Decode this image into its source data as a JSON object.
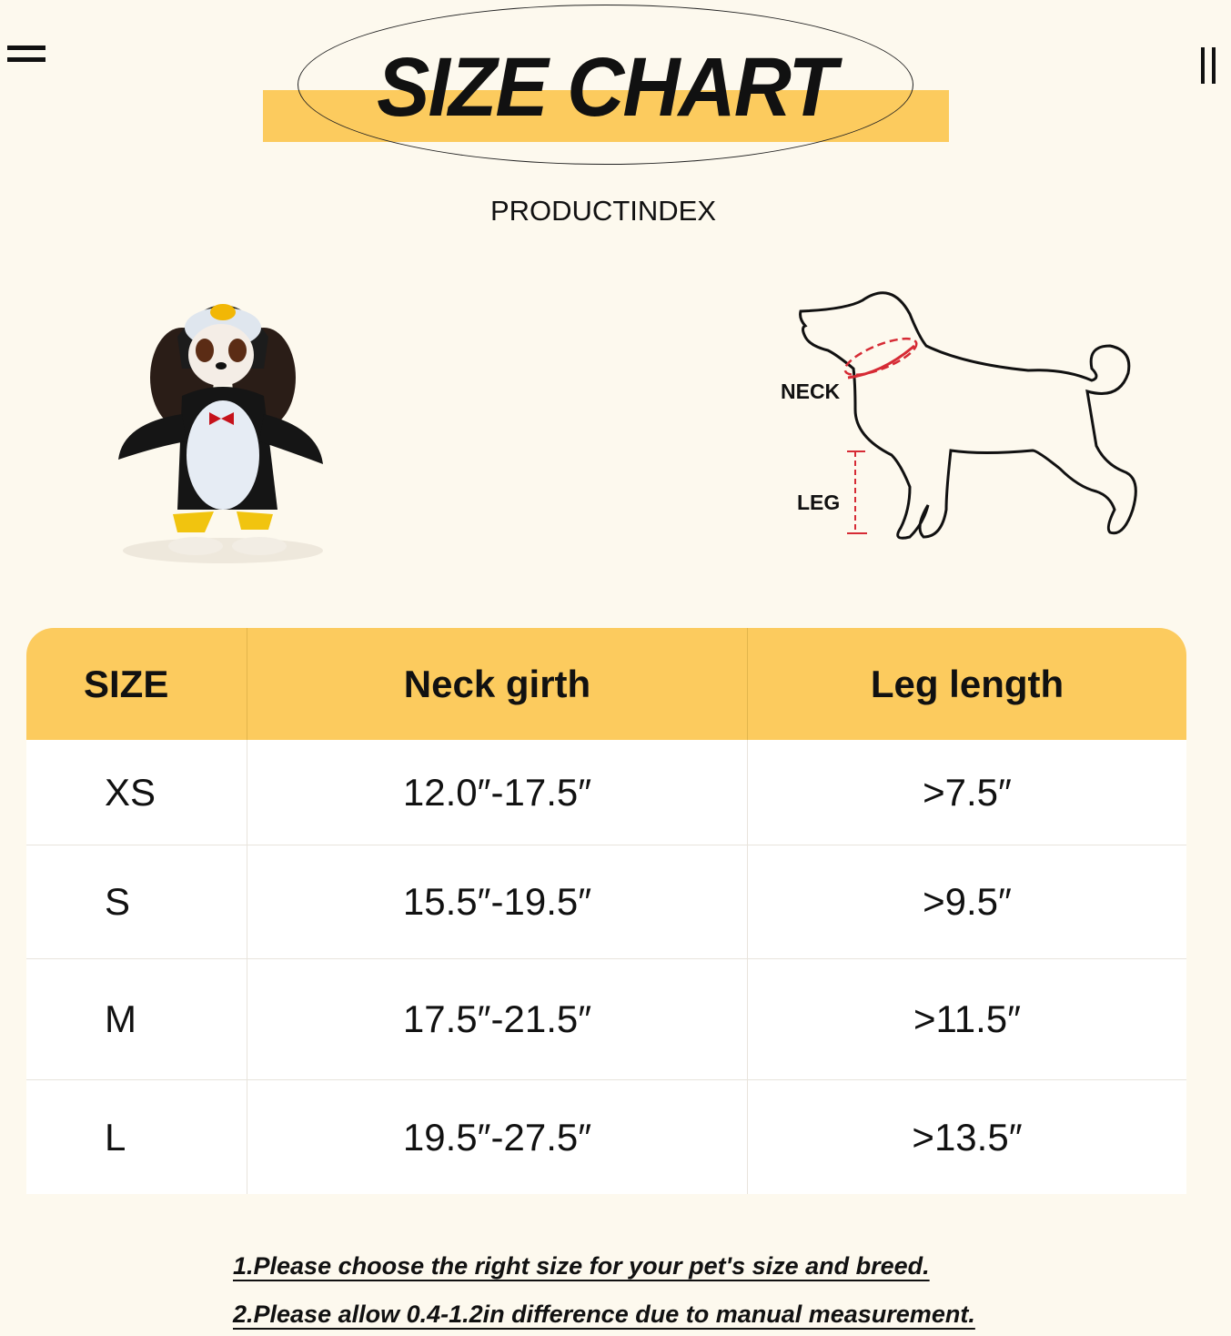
{
  "header": {
    "title": "SIZE CHART",
    "brand": "PRODUCTINDEX"
  },
  "icons": {
    "left": "menu-icon",
    "right": "pause-icon"
  },
  "colors": {
    "accent": "#fccb5e",
    "background": "#fdf9ee",
    "measure_line": "#d62b35"
  },
  "diagram": {
    "neck_label": "NECK",
    "leg_label": "LEG"
  },
  "table": {
    "headers": [
      "SIZE",
      "Neck girth",
      "Leg length"
    ],
    "rows": [
      [
        "XS",
        "12.0″-17.5″",
        ">7.5″"
      ],
      [
        "S",
        "15.5″-19.5″",
        ">9.5″"
      ],
      [
        "M",
        "17.5″-21.5″",
        ">11.5″"
      ],
      [
        "L",
        "19.5″-27.5″",
        ">13.5″"
      ]
    ]
  },
  "notes": [
    "1.Please choose the right size for your pet's size and breed.",
    "2.Please allow 0.4-1.2in difference due to manual measurement."
  ]
}
